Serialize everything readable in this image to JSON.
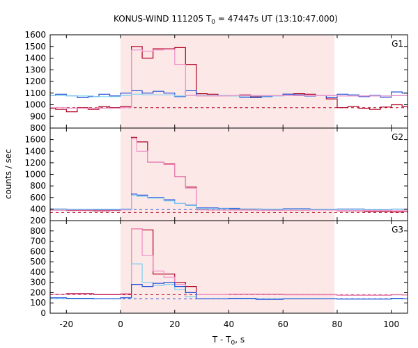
{
  "chart_data": {
    "type": "line",
    "title_main": "KONUS-WIND 111205 T",
    "title_sub": "0",
    "title_rest": " = 47447s UT (13:10:47.000)",
    "xlabel_main": "T - T",
    "xlabel_sub": "0",
    "xlabel_rest": ", s",
    "ylabel": "counts / sec",
    "xlim": [
      -26,
      106
    ],
    "x_ticks": [
      -20,
      0,
      20,
      40,
      60,
      80,
      100
    ],
    "x_tick_labels": [
      "-20",
      "0",
      "20",
      "40",
      "60",
      "80",
      "100"
    ],
    "shaded_interval": [
      0,
      79
    ],
    "colors": {
      "shade": "#fde8e8",
      "dark_red": "#b00020",
      "blue": "#1f4fd8",
      "light_blue": "#7fd0f0",
      "pink": "#f090c8",
      "frame": "#000000"
    },
    "panels": [
      {
        "name": "G1",
        "ylim": [
          800,
          1600
        ],
        "y_ticks": [
          800,
          900,
          1000,
          1100,
          1200,
          1300,
          1400,
          1500,
          1600
        ],
        "y_tick_labels": [
          "800",
          "900",
          "1000",
          "1100",
          "1200",
          "1300",
          "1400",
          "1500",
          "1600"
        ],
        "background_levels": [
          {
            "name": "red-background",
            "color": "dark_red",
            "value": 975
          }
        ],
        "series": [
          {
            "name": "red-hist",
            "color": "dark_red",
            "x": [
              -26,
              -24,
              -20,
              -16,
              -12,
              -8,
              -4,
              0,
              4,
              8,
              12,
              16,
              20,
              24,
              28,
              32,
              36,
              40,
              44,
              48,
              52,
              56,
              60,
              64,
              68,
              72,
              76,
              80,
              84,
              88,
              92,
              96,
              100,
              104
            ],
            "y": [
              970,
              960,
              940,
              975,
              960,
              985,
              975,
              985,
              1500,
              1400,
              1480,
              1480,
              1490,
              1345,
              1095,
              1090,
              1075,
              1080,
              1085,
              1070,
              1075,
              1080,
              1090,
              1095,
              1090,
              1080,
              1050,
              975,
              985,
              970,
              960,
              980,
              1000,
              985
            ]
          },
          {
            "name": "blue-hist",
            "color": "blue",
            "x": [
              -26,
              -24,
              -20,
              -16,
              -12,
              -8,
              -4,
              0,
              4,
              8,
              12,
              16,
              20,
              24,
              28,
              32,
              36,
              40,
              44,
              48,
              52,
              56,
              60,
              64,
              68,
              72,
              76,
              80,
              84,
              88,
              92,
              96,
              100,
              104
            ],
            "y": [
              1080,
              1090,
              1075,
              1060,
              1070,
              1090,
              1075,
              1100,
              1120,
              1100,
              1115,
              1100,
              1070,
              1120,
              1080,
              1075,
              1080,
              1075,
              1065,
              1060,
              1070,
              1080,
              1090,
              1085,
              1075,
              1080,
              1060,
              1090,
              1085,
              1070,
              1080,
              1065,
              1110,
              1100
            ]
          },
          {
            "name": "light-blue-hist",
            "color": "light_blue",
            "x": [
              -26,
              -20,
              -10,
              0,
              4,
              8,
              20,
              24,
              40,
              60,
              80,
              100
            ],
            "y": [
              1080,
              1075,
              1070,
              1080,
              1090,
              1085,
              1075,
              1080,
              1075,
              1080,
              1075,
              1080
            ]
          },
          {
            "name": "pink-hist",
            "color": "pink",
            "x": [
              -26,
              -20,
              -10,
              0,
              4,
              8,
              12,
              16,
              20,
              24,
              28,
              40,
              60,
              80,
              100
            ],
            "y": [
              975,
              970,
              970,
              975,
              1470,
              1460,
              1470,
              1475,
              1345,
              1080,
              1075,
              1080,
              1078,
              1075,
              1078
            ]
          }
        ]
      },
      {
        "name": "G2",
        "ylim": [
          200,
          1800
        ],
        "y_ticks": [
          200,
          400,
          600,
          800,
          1000,
          1200,
          1400,
          1600
        ],
        "y_tick_labels": [
          "200",
          "400",
          "600",
          "800",
          "1000",
          "1200",
          "1400",
          "1600"
        ],
        "background_levels": [
          {
            "name": "blue-background",
            "color": "blue",
            "value": 395
          },
          {
            "name": "red-background",
            "color": "dark_red",
            "value": 340
          }
        ],
        "series": [
          {
            "name": "red-hist",
            "color": "dark_red",
            "x": [
              -26,
              -20,
              -10,
              -4,
              0,
              4,
              6,
              10,
              16,
              20,
              24,
              28,
              32,
              40,
              50,
              60,
              70,
              80,
              90,
              100,
              104
            ],
            "y": [
              380,
              375,
              370,
              375,
              390,
              1640,
              1560,
              1210,
              1180,
              960,
              780,
              390,
              385,
              385,
              380,
              380,
              385,
              370,
              360,
              350,
              360
            ]
          },
          {
            "name": "pink-hist",
            "color": "pink",
            "x": [
              -26,
              0,
              4,
              6,
              10,
              16,
              20,
              24,
              28,
              40,
              60,
              80,
              100
            ],
            "y": [
              380,
              385,
              1620,
              1400,
              1210,
              1170,
              960,
              760,
              385,
              380,
              382,
              375,
              370
            ]
          },
          {
            "name": "blue-hist",
            "color": "blue",
            "x": [
              -26,
              -20,
              -10,
              0,
              4,
              6,
              10,
              16,
              20,
              24,
              28,
              36,
              44,
              52,
              60,
              70,
              80,
              90,
              100,
              104
            ],
            "y": [
              400,
              395,
              392,
              398,
              660,
              640,
              600,
              560,
              500,
              470,
              420,
              410,
              400,
              395,
              405,
              395,
              400,
              392,
              398,
              395
            ]
          },
          {
            "name": "light-blue-hist",
            "color": "light_blue",
            "x": [
              -26,
              0,
              4,
              6,
              10,
              16,
              20,
              24,
              28,
              40,
              60,
              80,
              100
            ],
            "y": [
              398,
              395,
              640,
              620,
              590,
              540,
              500,
              460,
              405,
              400,
              398,
              395,
              398
            ]
          }
        ]
      },
      {
        "name": "G3",
        "ylim": [
          0,
          900
        ],
        "y_ticks": [
          0,
          100,
          200,
          300,
          400,
          500,
          600,
          700,
          800
        ],
        "y_tick_labels": [
          "0",
          "100",
          "200",
          "300",
          "400",
          "500",
          "600",
          "700",
          "800"
        ],
        "background_levels": [
          {
            "name": "red-background",
            "color": "dark_red",
            "value": 180
          },
          {
            "name": "blue-background",
            "color": "blue",
            "value": 140
          }
        ],
        "series": [
          {
            "name": "red-hist",
            "color": "dark_red",
            "x": [
              -26,
              -20,
              -10,
              0,
              4,
              8,
              12,
              16,
              20,
              24,
              28,
              40,
              60,
              80,
              100,
              104
            ],
            "y": [
              185,
              190,
              180,
              185,
              820,
              810,
              380,
              380,
              300,
              260,
              180,
              185,
              180,
              175,
              180,
              178
            ]
          },
          {
            "name": "pink-hist",
            "color": "pink",
            "x": [
              -26,
              0,
              4,
              8,
              12,
              16,
              20,
              24,
              28,
              40,
              60,
              80,
              100
            ],
            "y": [
              185,
              190,
              820,
              560,
              410,
              350,
              280,
              200,
              180,
              182,
              178,
              176,
              178
            ]
          },
          {
            "name": "light-blue-hist",
            "color": "light_blue",
            "x": [
              -26,
              0,
              4,
              8,
              12,
              16,
              20,
              24,
              28,
              40,
              60,
              80,
              100
            ],
            "y": [
              140,
              150,
              480,
              300,
              270,
              280,
              230,
              160,
              140,
              140,
              142,
              138,
              140
            ]
          },
          {
            "name": "blue-hist",
            "color": "blue",
            "x": [
              -26,
              -20,
              -10,
              0,
              4,
              8,
              12,
              16,
              20,
              24,
              28,
              40,
              50,
              60,
              80,
              100,
              104
            ],
            "y": [
              150,
              145,
              140,
              150,
              280,
              260,
              290,
              300,
              260,
              200,
              140,
              145,
              135,
              140,
              138,
              145,
              140
            ]
          }
        ]
      }
    ]
  }
}
